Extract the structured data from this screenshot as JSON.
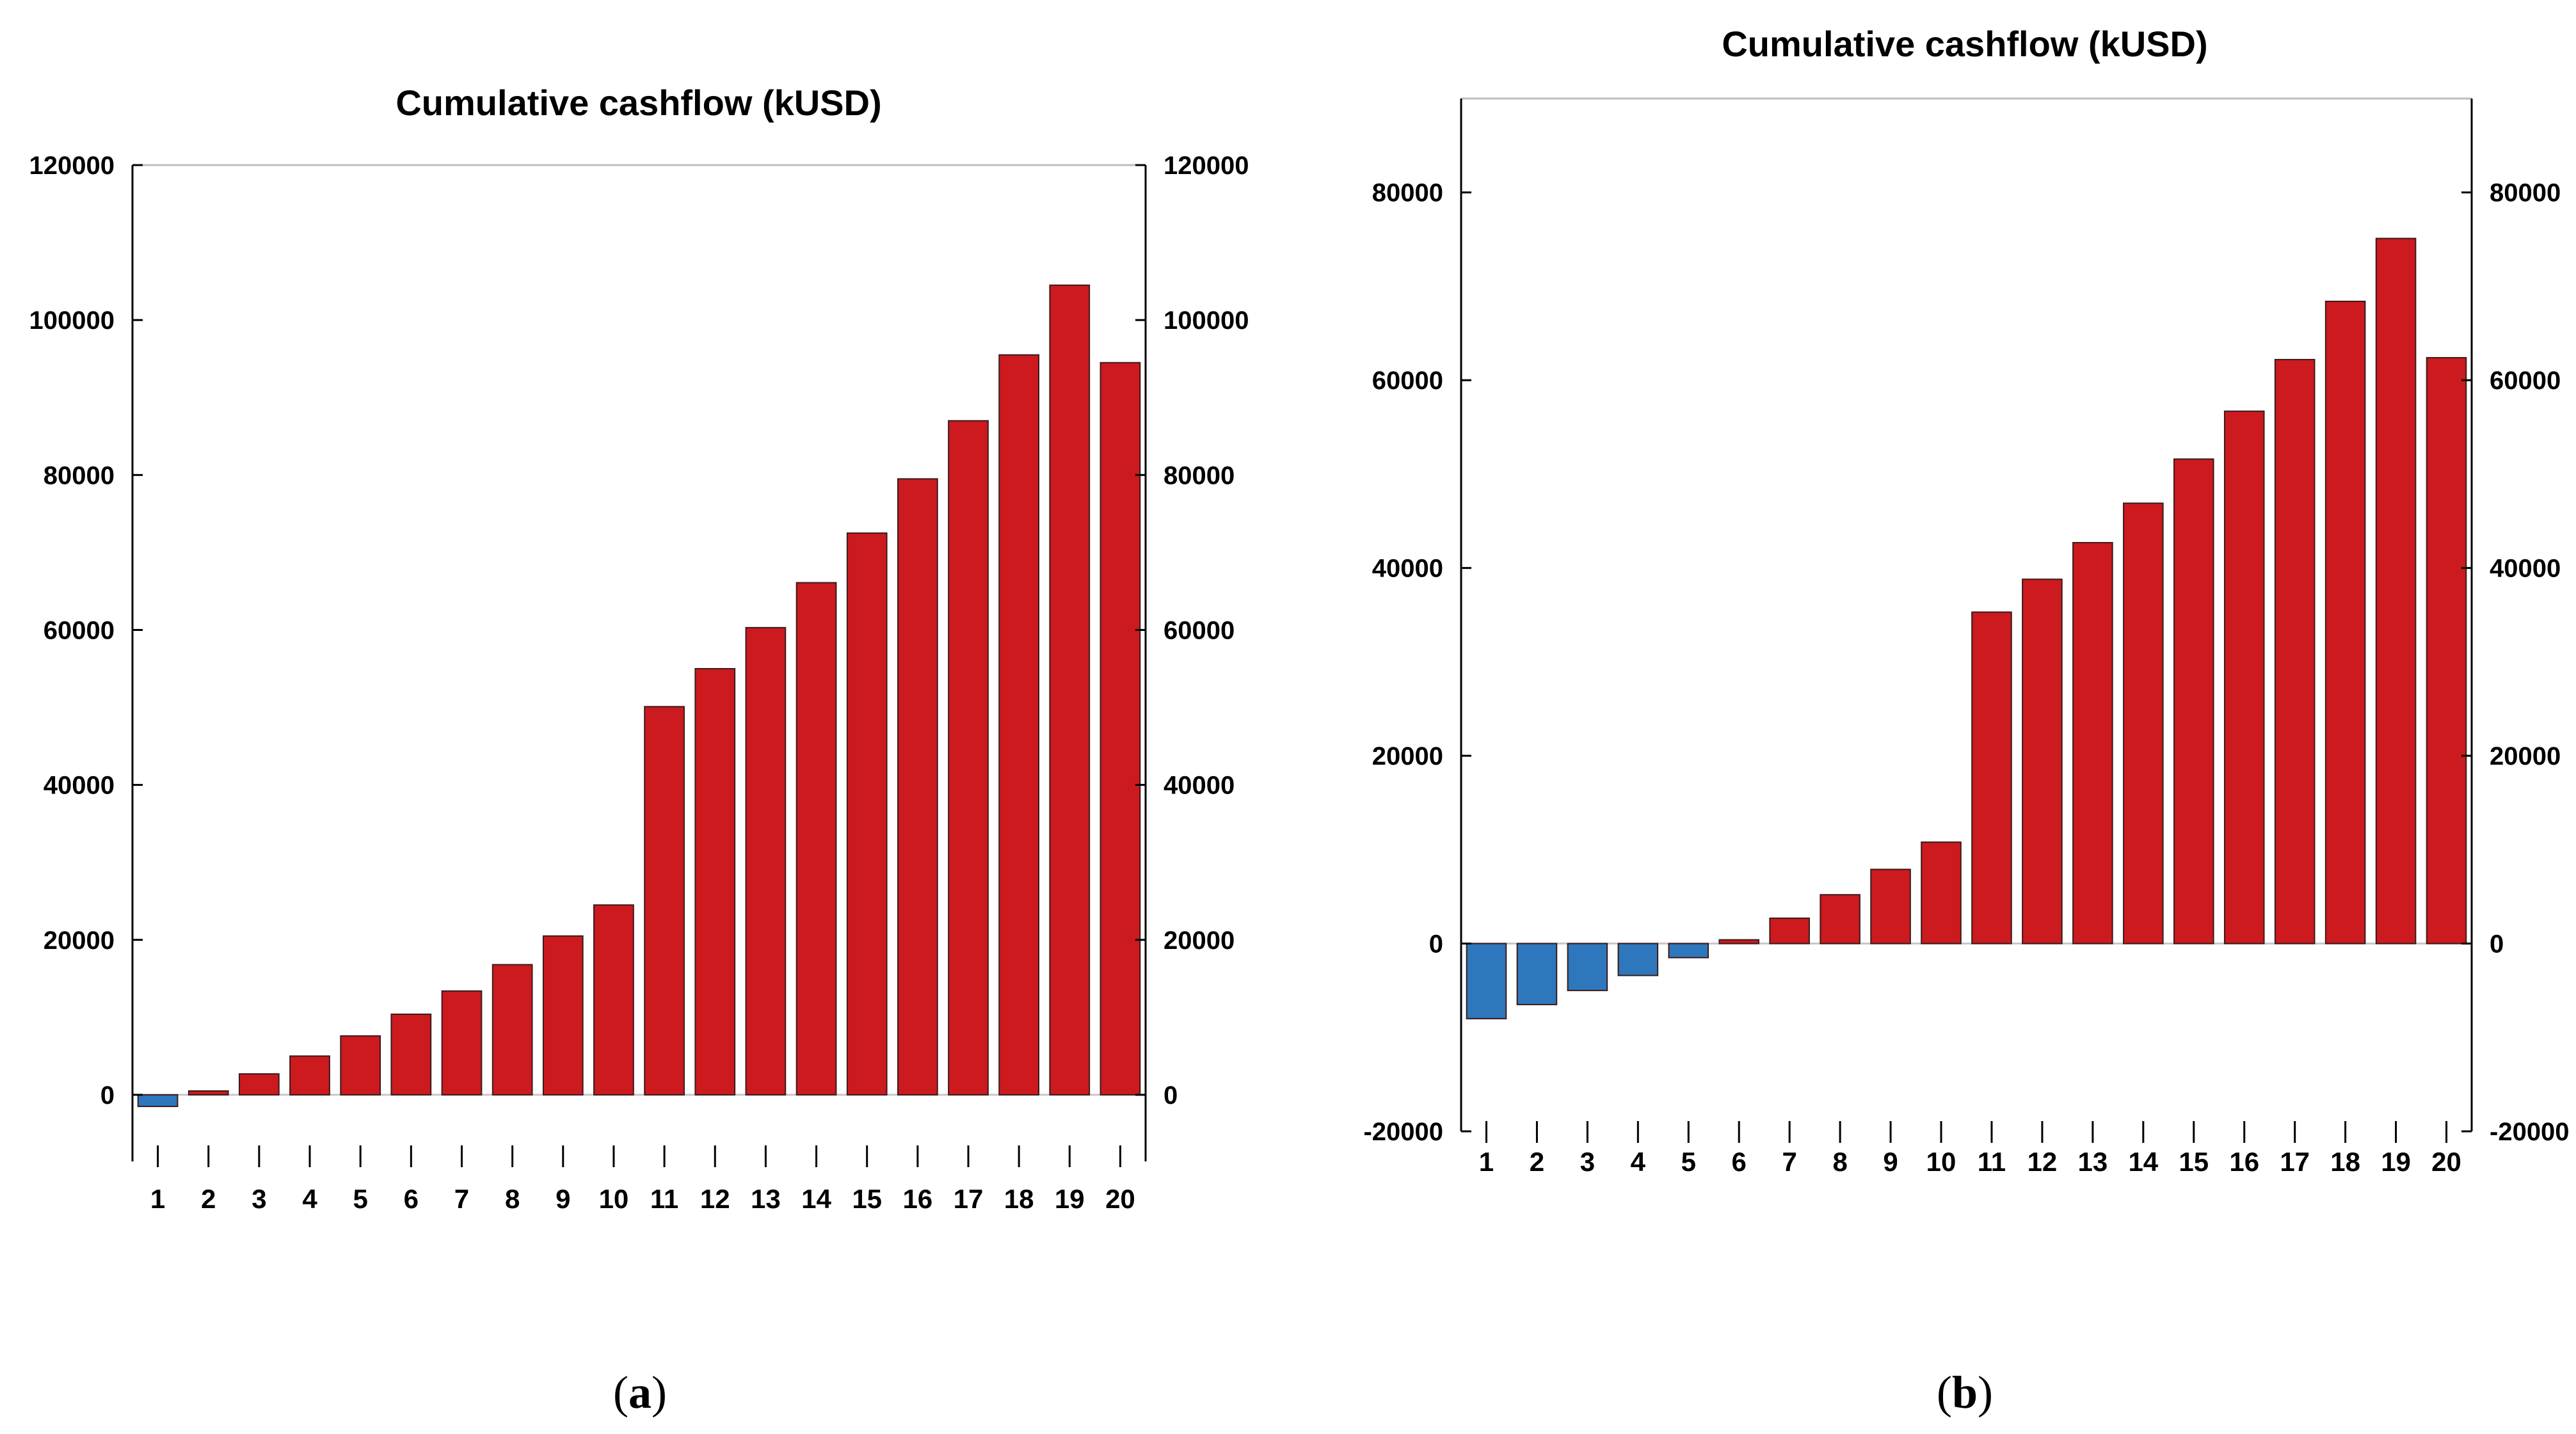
{
  "figure": {
    "panels": [
      {
        "letter": "a"
      },
      {
        "letter": "b"
      }
    ]
  },
  "colors": {
    "positive": "#cc1a1f",
    "negative": "#2e77bc"
  },
  "chart_data": [
    {
      "type": "bar",
      "title": "Cumulative cashflow (kUSD)",
      "categories": [
        "1",
        "2",
        "3",
        "4",
        "5",
        "6",
        "7",
        "8",
        "9",
        "10",
        "11",
        "12",
        "13",
        "14",
        "15",
        "16",
        "17",
        "18",
        "19",
        "20"
      ],
      "values": [
        -1500,
        500,
        2700,
        5000,
        7600,
        10400,
        13400,
        16800,
        20500,
        24500,
        50100,
        55000,
        60300,
        66100,
        72500,
        79500,
        87000,
        95500,
        104500,
        94500
      ],
      "ylim": [
        -10000,
        120000
      ],
      "yticks": [
        0,
        20000,
        40000,
        60000,
        80000,
        100000,
        120000
      ],
      "ytick_labels": [
        "0",
        "20000",
        "40000",
        "60000",
        "80000",
        "100000",
        "120000"
      ],
      "xlabel": "",
      "ylabel": "",
      "legend": "none",
      "grid": false
    },
    {
      "type": "bar",
      "title": "Cumulative cashflow (kUSD)",
      "categories": [
        "1",
        "2",
        "3",
        "4",
        "5",
        "6",
        "7",
        "8",
        "9",
        "10",
        "11",
        "12",
        "13",
        "14",
        "15",
        "16",
        "17",
        "18",
        "19",
        "20"
      ],
      "values": [
        -8000,
        -6500,
        -5000,
        -3400,
        -1500,
        400,
        2700,
        5200,
        7900,
        10800,
        35300,
        38800,
        42700,
        46900,
        51600,
        56700,
        62200,
        68400,
        75100,
        62400
      ],
      "ylim": [
        -20000,
        90000
      ],
      "yticks": [
        -20000,
        0,
        20000,
        40000,
        60000,
        80000
      ],
      "ytick_labels": [
        "-20000",
        "0",
        "20000",
        "40000",
        "60000",
        "80000"
      ],
      "xlabel": "",
      "ylabel": "",
      "legend": "none",
      "grid": false
    }
  ]
}
